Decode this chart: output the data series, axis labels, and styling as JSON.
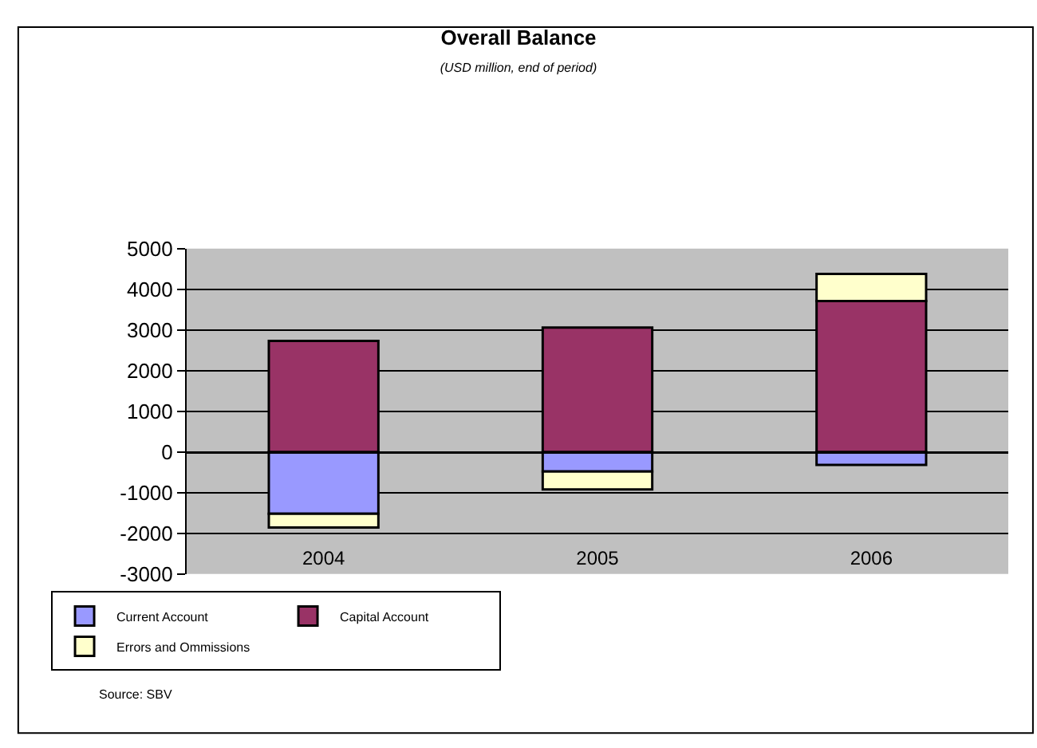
{
  "chart_data": {
    "type": "bar",
    "title": "Overall Balance",
    "subtitle": "(USD million, end of period)",
    "categories": [
      "2004",
      "2005",
      "2006"
    ],
    "stacked": true,
    "series": [
      {
        "name": "Current Account",
        "color": "#9999ff",
        "values": [
          -1520,
          -480,
          -320
        ]
      },
      {
        "name": "Capital Account",
        "color": "#993366",
        "values": [
          2730,
          3060,
          3710
        ]
      },
      {
        "name": "Errors and Ommissions",
        "color": "#ffffcc",
        "values": [
          -340,
          -440,
          670
        ]
      }
    ],
    "ylim": [
      -3000,
      5000
    ],
    "yticks": [
      -3000,
      -2000,
      -1000,
      0,
      1000,
      2000,
      3000,
      4000,
      5000
    ],
    "grid": "y",
    "legend": "bottom left",
    "annotations": [
      "Source: SBV"
    ]
  }
}
